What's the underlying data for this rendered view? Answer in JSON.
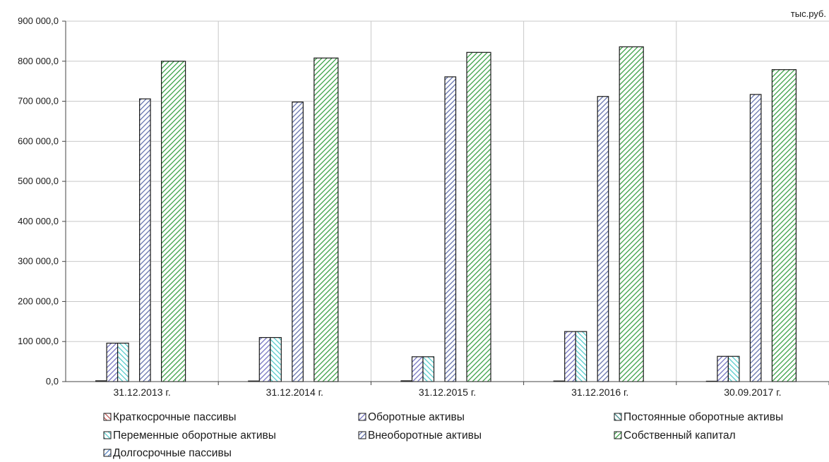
{
  "chart_data": {
    "type": "bar",
    "unit_label": "тыс.руб.",
    "categories": [
      "31.12.2013 г.",
      "31.12.2014 г.",
      "31.12.2015 г.",
      "31.12.2016 г.",
      "30.09.2017 г."
    ],
    "ylim": [
      0,
      900000
    ],
    "ytick_values": [
      0,
      100000,
      200000,
      300000,
      400000,
      500000,
      600000,
      700000,
      800000,
      900000
    ],
    "ytick_labels": [
      "0,0",
      "100 000,0",
      "200 000,0",
      "300 000,0",
      "400 000,0",
      "500 000,0",
      "600 000,0",
      "700 000,0",
      "800 000,0",
      "900 000,0"
    ],
    "grid": true,
    "legend_position": "bottom",
    "series": [
      {
        "name": "Краткосрочные пассивы",
        "values": [
          2000,
          1500,
          2000,
          1500,
          1000
        ],
        "color": "#c0504d",
        "pattern": "hatch-right"
      },
      {
        "name": "Оборотные активы",
        "values": [
          96000,
          110000,
          62000,
          125000,
          63000
        ],
        "color": "#6b6bbd",
        "pattern": "hatch-left"
      },
      {
        "name": "Переменные оборотные активы",
        "values": [
          96000,
          110000,
          62000,
          125000,
          63000
        ],
        "color": "#4cc9c9",
        "pattern": "hatch-right"
      },
      {
        "name": "Долгосрочные пассивы",
        "values": [
          0,
          0,
          0,
          0,
          0
        ],
        "color": "#4f7fbf",
        "pattern": "hatch-left"
      },
      {
        "name": "Внеоборотные активы",
        "values": [
          706000,
          698000,
          761000,
          712000,
          717000
        ],
        "color": "#5b6aa8",
        "pattern": "hatch-left"
      },
      {
        "name": "Постоянные оборотные активы",
        "values": [
          0,
          0,
          0,
          0,
          0
        ],
        "color": "#2e7d7d",
        "pattern": "hatch-right"
      },
      {
        "name": "Собственный капитал",
        "values": [
          800000,
          808000,
          822000,
          836000,
          779000
        ],
        "color": "#2e9b3a",
        "pattern": "hatch-left"
      }
    ],
    "legend_order": [
      0,
      1,
      5,
      2,
      4,
      6,
      3
    ]
  }
}
